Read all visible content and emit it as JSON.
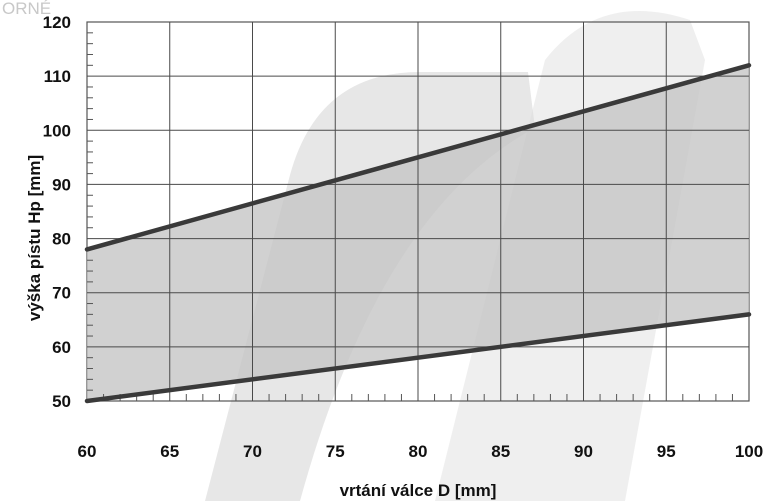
{
  "chart_data": {
    "type": "area",
    "xlabel": "vrtání válce D [mm]",
    "ylabel": "výška pístu Hp [mm]",
    "xlim": [
      60,
      100
    ],
    "ylim": [
      50,
      120
    ],
    "x_ticks": [
      60,
      65,
      70,
      75,
      80,
      85,
      90,
      95,
      100
    ],
    "y_ticks": [
      50,
      60,
      70,
      80,
      90,
      100,
      110,
      120
    ],
    "grid": true,
    "band_color": "#c4c4c4",
    "line_color": "#3a3a3a",
    "series": [
      {
        "x": [
          60,
          100
        ],
        "values": [
          78,
          112
        ]
      },
      {
        "x": [
          60,
          100
        ],
        "values": [
          50,
          66
        ]
      }
    ],
    "watermark": "ORNÉ"
  }
}
